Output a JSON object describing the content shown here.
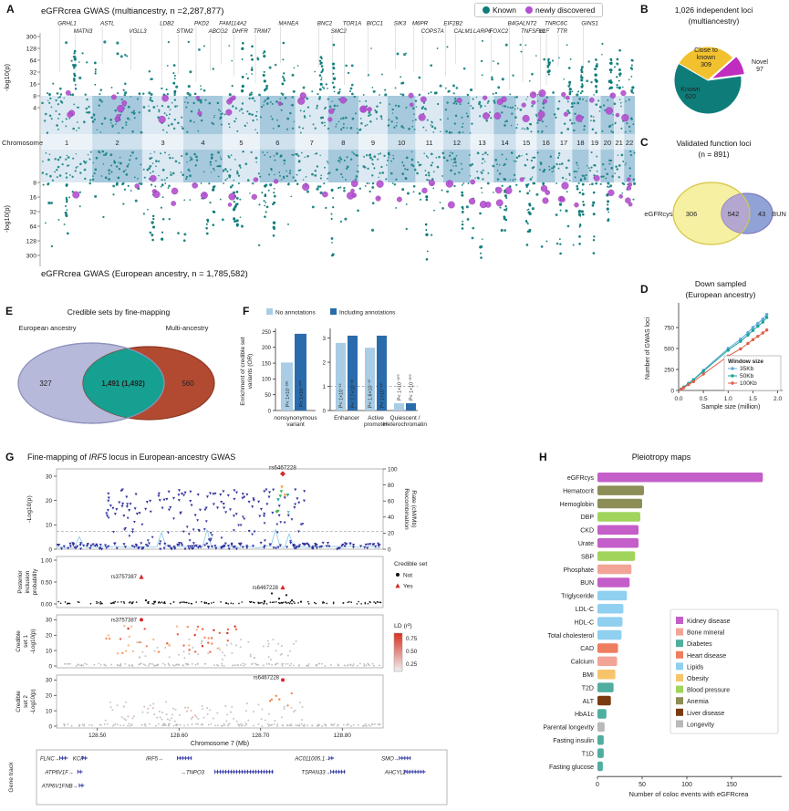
{
  "panel_labels": {
    "a": "A",
    "b": "B",
    "c": "C",
    "d": "D",
    "e": "E",
    "f": "F",
    "g": "G",
    "h": "H"
  },
  "chart_data": [
    {
      "id": "a_manhattan",
      "type": "scatter",
      "title_top": "eGFRcrea GWAS (multiancestry, n =2,287,877)",
      "title_bottom": "eGFRcrea GWAS (European ancestry, n = 1,785,582)",
      "legend": [
        {
          "label": "Known",
          "color": "#0e7d7a"
        },
        {
          "label": "newly discovered",
          "color": "#b44fd0"
        }
      ],
      "ylabel": "-log10(p)",
      "yticks_top": [
        "300",
        "128",
        "64",
        "32",
        "16",
        "8",
        "4"
      ],
      "yticks_bottom": [
        "8",
        "16",
        "32",
        "64",
        "128",
        "300"
      ],
      "xlabel": "Chromosome",
      "chromosomes": [
        "1",
        "2",
        "3",
        "4",
        "5",
        "6",
        "7",
        "8",
        "9",
        "10",
        "11",
        "12",
        "13",
        "14",
        "15",
        "16",
        "17",
        "18",
        "19",
        "20",
        "21",
        "22"
      ],
      "chrom_rel_widths": [
        8.1,
        7.9,
        6.5,
        6.2,
        5.9,
        5.6,
        5.2,
        4.8,
        4.6,
        4.4,
        4.4,
        4.3,
        3.7,
        3.5,
        3.3,
        2.9,
        2.7,
        2.6,
        1.9,
        2.1,
        1.6,
        1.7
      ],
      "gene_labels": [
        {
          "text": "GRHL1",
          "xf": 0.028,
          "row": 0
        },
        {
          "text": "MATN3",
          "xf": 0.055,
          "row": 1
        },
        {
          "text": "ASTL",
          "xf": 0.1,
          "row": 0
        },
        {
          "text": "VGLL3",
          "xf": 0.148,
          "row": 1
        },
        {
          "text": "LDB2",
          "xf": 0.2,
          "row": 0
        },
        {
          "text": "STIM2",
          "xf": 0.228,
          "row": 1
        },
        {
          "text": "PKD2",
          "xf": 0.258,
          "row": 0
        },
        {
          "text": "ABCG2",
          "xf": 0.282,
          "row": 1
        },
        {
          "text": "FAM114A2",
          "xf": 0.3,
          "row": 0
        },
        {
          "text": "DHFR",
          "xf": 0.322,
          "row": 1
        },
        {
          "text": "TRIM7",
          "xf": 0.358,
          "row": 1
        },
        {
          "text": "MANEA",
          "xf": 0.4,
          "row": 0
        },
        {
          "text": "BNC2",
          "xf": 0.465,
          "row": 0
        },
        {
          "text": "SMC2",
          "xf": 0.488,
          "row": 1
        },
        {
          "text": "TOR1A",
          "xf": 0.508,
          "row": 0
        },
        {
          "text": "BICC1",
          "xf": 0.548,
          "row": 0
        },
        {
          "text": "SIK3",
          "xf": 0.594,
          "row": 0
        },
        {
          "text": "M6PR",
          "xf": 0.625,
          "row": 0
        },
        {
          "text": "COPS7A",
          "xf": 0.64,
          "row": 1
        },
        {
          "text": "EIF2B2",
          "xf": 0.678,
          "row": 0
        },
        {
          "text": "CALM1",
          "xf": 0.695,
          "row": 1
        },
        {
          "text": "LARP6",
          "xf": 0.728,
          "row": 1
        },
        {
          "text": "FOXC2",
          "xf": 0.755,
          "row": 1
        },
        {
          "text": "B4GALNT2",
          "xf": 0.786,
          "row": 0
        },
        {
          "text": "TNFSF13",
          "xf": 0.808,
          "row": 1
        },
        {
          "text": "HLF",
          "xf": 0.838,
          "row": 1
        },
        {
          "text": "TNRC6C",
          "xf": 0.848,
          "row": 0
        },
        {
          "text": "TTR",
          "xf": 0.868,
          "row": 1
        },
        {
          "text": "GINS1",
          "xf": 0.91,
          "row": 0
        }
      ],
      "colors": {
        "band_light": "#dce9f3",
        "band_dark": "#a6c9dd"
      }
    },
    {
      "id": "b_pie",
      "type": "pie",
      "title_line1": "1,026 independent loci",
      "title_line2": "(multiancestry)",
      "start_angle_deg": 300,
      "slices": [
        {
          "label": "Close to known",
          "value": 309,
          "color": "#f2c12e",
          "explode": 0,
          "label_lines": [
            "Close to",
            "known",
            "309"
          ],
          "lx": 74,
          "ly": 57,
          "text_color": "#4a3a00"
        },
        {
          "label": "Novel",
          "value": 97,
          "color": "#c02bc0",
          "explode": 4,
          "label_lines": [
            "Novel",
            "97"
          ],
          "lx": 133,
          "ly": 70,
          "text_color": "#222222"
        },
        {
          "label": "Known",
          "value": 620,
          "color": "#0e7d7a",
          "explode": 0,
          "label_lines": [
            "Known",
            "620"
          ],
          "lx": 57,
          "ly": 100,
          "text_color": "#ffffff"
        }
      ]
    },
    {
      "id": "c_venn",
      "type": "venn",
      "title_line1": "Validated function loci",
      "title_line2": "(n = 891)",
      "left_label": "eGFRcys",
      "right_label": "BUN",
      "left_value": "306",
      "overlap_value": "542",
      "right_value": "43",
      "left_fill": "#f6f0a2",
      "left_stroke": "#d8c84b",
      "right_fill": "#8fa3d6",
      "right_stroke": "#8079c0",
      "overlap_fill": "#b3a6cf"
    },
    {
      "id": "d_lines",
      "type": "line",
      "title_line1": "Down sampled",
      "title_line2": "(European ancestry)",
      "xlabel": "Sample size (million)",
      "ylabel": "Number of GWAS loci",
      "xticks": [
        "0.0",
        "0.5",
        "1.0",
        "1.5",
        "2.0"
      ],
      "yticks": [
        "0",
        "250",
        "500",
        "750"
      ],
      "xlim": [
        0,
        2.1
      ],
      "ylim": [
        0,
        1000
      ],
      "legend_title": "Window size",
      "x": [
        0.05,
        0.1,
        0.2,
        0.3,
        0.5,
        1.0,
        1.25,
        1.4,
        1.5,
        1.6,
        1.7,
        1.78
      ],
      "series": [
        {
          "name": "35Kb",
          "color": "#5fa8d8",
          "y": [
            15,
            40,
            85,
            130,
            240,
            500,
            610,
            690,
            750,
            800,
            850,
            905
          ]
        },
        {
          "name": "50Kb",
          "color": "#17a398",
          "y": [
            14,
            38,
            80,
            125,
            230,
            480,
            585,
            660,
            715,
            765,
            815,
            870
          ]
        },
        {
          "name": "100Kb",
          "color": "#df5f4a",
          "y": [
            12,
            32,
            70,
            105,
            195,
            410,
            495,
            560,
            605,
            645,
            685,
            720
          ]
        }
      ]
    },
    {
      "id": "e_venn",
      "type": "venn",
      "title": "Credible sets by fine-mapping",
      "left_label": "European ancestry",
      "right_label": "Multi-ancestry",
      "left_value": "327",
      "overlap_value": "1,491 (1,492)",
      "right_value": "560",
      "left_fill": "#b6b9d9",
      "left_stroke": "#8f93bd",
      "right_fill": "#b24a31",
      "right_stroke": "#8d3722",
      "overlap_fill": "#16a091"
    },
    {
      "id": "f_enrichment",
      "type": "bar",
      "legend": [
        {
          "label": "No annotations",
          "color": "#a9cde4"
        },
        {
          "label": "Including annotations",
          "color": "#2a6cab"
        }
      ],
      "ylabel_line1": "Enrichment of credible set",
      "ylabel_line2": "variants (OR)",
      "left": {
        "yticks": [
          "0",
          "50",
          "100",
          "150",
          "200",
          "250"
        ],
        "ymax": 260,
        "category_lines": [
          "nonsynonymous",
          "variant"
        ],
        "values": {
          "no": 152,
          "inc": 243
        },
        "p_no": "P< 1×10⁻²³⁵",
        "p_inc": "P< 1×10⁻³⁰⁰"
      },
      "right": {
        "yticks": [
          "0",
          "1",
          "2",
          "3"
        ],
        "ymax": 3.4,
        "refline": 1,
        "groups": [
          {
            "category_lines": [
              "Enhancer"
            ],
            "no": 2.8,
            "inc": 3.1,
            "p_no": "P< 1×10⁻¹⁶",
            "p_inc": "P< 7.7×10⁻²⁹"
          },
          {
            "category_lines": [
              "Active",
              "promoter"
            ],
            "no": 2.6,
            "inc": 3.1,
            "p_no": "P< 1.6×10⁻¹⁰",
            "p_inc": "P< 1×10⁻²⁸"
          },
          {
            "category_lines": [
              "Quiescent /",
              "Heterochromatin"
            ],
            "no": 0.3,
            "inc": 0.3,
            "p_no": "P< 1×10⁻³⁰⁰",
            "p_inc": "P< 1×10⁻³⁰⁰"
          }
        ]
      }
    },
    {
      "id": "g_locus",
      "type": "scatter",
      "title_prefix": "Fine-mapping of ",
      "title_gene": "IRF5",
      "title_suffix": " locus in European-ancestry GWAS",
      "assoc": {
        "ylabel": "-Log10(p)",
        "yticks": [
          "0",
          "10",
          "20",
          "30"
        ],
        "y2label_line1": "Recombination",
        "y2label_line2": "Rate (cM/Mb)",
        "y2ticks": [
          "0",
          "20",
          "40",
          "60",
          "80",
          "100"
        ],
        "top_snp": "rs6467228"
      },
      "pip": {
        "ylabel_lines": [
          "Posterior",
          "inclusion",
          "probability"
        ],
        "yticks": [
          "1.00",
          "0.50",
          "0.00"
        ],
        "snp_left": "rs3757387",
        "snp_mid": "rs6467228"
      },
      "cs1": {
        "ylabel_lines": [
          "Credible",
          "set 1",
          "-Log10(p)"
        ],
        "yticks": [
          "0",
          "10",
          "20",
          "30"
        ],
        "snp": "rs3757387"
      },
      "cs2": {
        "ylabel_lines": [
          "Credible",
          "set 2",
          "-Log10(p)"
        ],
        "yticks": [
          "0",
          "10",
          "20",
          "30"
        ],
        "snp": "rs6467228"
      },
      "xaxis": {
        "label": "Chromosome 7 (Mb)",
        "ticks": [
          "128.50",
          "128.60",
          "128.70",
          "128.80"
        ],
        "tick_mb": [
          128.5,
          128.6,
          128.7,
          128.8
        ],
        "range_mb": [
          128.45,
          128.85
        ]
      },
      "credible_legend": {
        "title": "Credible set",
        "not_label": "Not",
        "yes_label": "Yes"
      },
      "ld_legend": {
        "title": "LD (r²)",
        "labels": [
          "0.75",
          "0.50",
          "0.25"
        ],
        "top_color": "#d7301f",
        "bottom_color": "#f0f0f0"
      },
      "gene_track_label": "Gene track",
      "genes": [
        {
          "label": "FLNC→",
          "row": 0,
          "lxf": 0.0,
          "seg": [
            0.06,
            0.085
          ]
        },
        {
          "label": "KCP",
          "row": 0,
          "lxf": 0.1,
          "seg": [
            0.13,
            0.145
          ]
        },
        {
          "label": "ATP6V1F→",
          "row": 1,
          "lxf": 0.015,
          "seg": [
            0.115,
            0.13
          ]
        },
        {
          "label": "ATP6V1FNB→",
          "row": 2,
          "lxf": 0.005,
          "seg": [
            0.12,
            0.135
          ]
        },
        {
          "label": "IRF5→",
          "row": 0,
          "lxf": 0.324,
          "seg": [
            0.42,
            0.465
          ]
        },
        {
          "label": "→TNPO3",
          "row": 1,
          "lxf": 0.43,
          "seg": [
            0.535,
            0.715
          ]
        },
        {
          "label": "AC011005.1→",
          "row": 0,
          "lxf": 0.78,
          "seg": [
            0.885,
            0.9
          ]
        },
        {
          "label": "TSPAN33→",
          "row": 1,
          "lxf": 0.8,
          "seg": [
            0.89,
            0.935
          ]
        },
        {
          "label": "SMO→",
          "row": 0,
          "lxf": 1.045,
          "seg": [
            1.1,
            1.135
          ]
        },
        {
          "label": "AHCYL2→",
          "row": 1,
          "lxf": 1.055,
          "seg": [
            1.115,
            1.18
          ]
        }
      ]
    },
    {
      "id": "h_bars",
      "type": "bar",
      "title": "Pleiotropy maps",
      "xlabel": "Number of coloc events with eGFRcrea",
      "xticks": [
        0,
        50,
        100,
        150
      ],
      "xlim": [
        0,
        205
      ],
      "bars": [
        {
          "name": "eGFRcys",
          "value": 185,
          "group": "Kidney disease"
        },
        {
          "name": "Hematocrit",
          "value": 52,
          "group": "Anemia"
        },
        {
          "name": "Hemoglobin",
          "value": 50,
          "group": "Anemia"
        },
        {
          "name": "DBP",
          "value": 48,
          "group": "Blood pressure"
        },
        {
          "name": "CKD",
          "value": 46,
          "group": "Kidney disease"
        },
        {
          "name": "Urate",
          "value": 46,
          "group": "Kidney disease"
        },
        {
          "name": "SBP",
          "value": 42,
          "group": "Blood pressure"
        },
        {
          "name": "Phosphate",
          "value": 38,
          "group": "Bone mineral"
        },
        {
          "name": "BUN",
          "value": 36,
          "group": "Kidney disease"
        },
        {
          "name": "Triglyceride",
          "value": 33,
          "group": "Lipids"
        },
        {
          "name": "LDL-C",
          "value": 29,
          "group": "Lipids"
        },
        {
          "name": "HDL-C",
          "value": 28,
          "group": "Lipids"
        },
        {
          "name": "Total cholesterol",
          "value": 27,
          "group": "Lipids"
        },
        {
          "name": "CAD",
          "value": 23,
          "group": "Heart disease"
        },
        {
          "name": "Calcium",
          "value": 22,
          "group": "Bone mineral"
        },
        {
          "name": "BMI",
          "value": 20,
          "group": "Obesity"
        },
        {
          "name": "T2D",
          "value": 18,
          "group": "Diabetes"
        },
        {
          "name": "ALT",
          "value": 15,
          "group": "Liver disease"
        },
        {
          "name": "HbA1c",
          "value": 10,
          "group": "Diabetes"
        },
        {
          "name": "Parental longevity",
          "value": 8,
          "group": "Longevity"
        },
        {
          "name": "Fasting insulin",
          "value": 7,
          "group": "Diabetes"
        },
        {
          "name": "T1D",
          "value": 7,
          "group": "Diabetes"
        },
        {
          "name": "Fasting glucose",
          "value": 6,
          "group": "Diabetes"
        }
      ],
      "groups": [
        {
          "name": "Kidney disease",
          "color": "#c45ec8"
        },
        {
          "name": "Bone mineral",
          "color": "#f2a497"
        },
        {
          "name": "Diabetes",
          "color": "#4fae9f"
        },
        {
          "name": "Heart disease",
          "color": "#ef7d5f"
        },
        {
          "name": "Lipids",
          "color": "#8fd0f0"
        },
        {
          "name": "Obesity",
          "color": "#f6c46a"
        },
        {
          "name": "Blood pressure",
          "color": "#a1d45c"
        },
        {
          "name": "Anemia",
          "color": "#8d8d58"
        },
        {
          "name": "Liver disease",
          "color": "#7a3b10"
        },
        {
          "name": "Longevity",
          "color": "#b9b9b9"
        }
      ]
    }
  ]
}
